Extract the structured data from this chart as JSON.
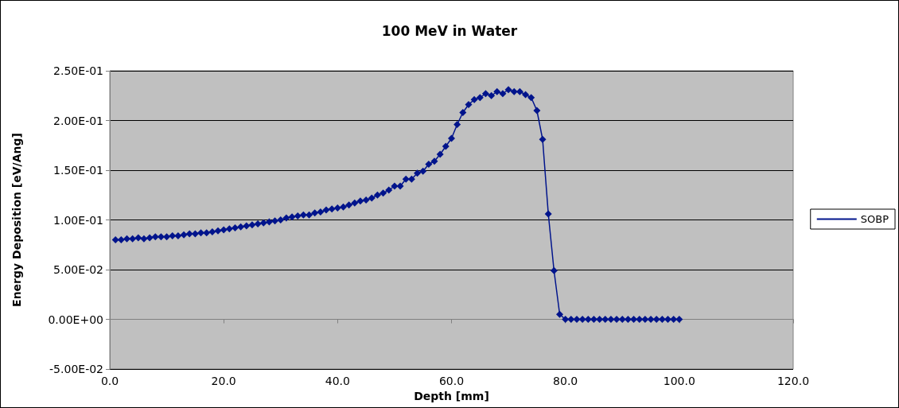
{
  "chart_data": {
    "type": "line",
    "title": "100 MeV in Water",
    "xlabel": "Depth [mm]",
    "ylabel": "Energy Deposition [eV/Ang]",
    "x": [
      1,
      2,
      3,
      4,
      5,
      6,
      7,
      8,
      9,
      10,
      11,
      12,
      13,
      14,
      15,
      16,
      17,
      18,
      19,
      20,
      21,
      22,
      23,
      24,
      25,
      26,
      27,
      28,
      29,
      30,
      31,
      32,
      33,
      34,
      35,
      36,
      37,
      38,
      39,
      40,
      41,
      42,
      43,
      44,
      45,
      46,
      47,
      48,
      49,
      50,
      51,
      52,
      53,
      54,
      55,
      56,
      57,
      58,
      59,
      60,
      61,
      62,
      63,
      64,
      65,
      66,
      67,
      68,
      69,
      70,
      71,
      72,
      73,
      74,
      75,
      76,
      77,
      78,
      79,
      80,
      81,
      82,
      83,
      84,
      85,
      86,
      87,
      88,
      89,
      90,
      91,
      92,
      93,
      94,
      95,
      96,
      97,
      98,
      99,
      100
    ],
    "series": [
      {
        "name": "SOBP",
        "color": "#00148c",
        "values": [
          0.08,
          0.08,
          0.081,
          0.081,
          0.082,
          0.081,
          0.082,
          0.083,
          0.083,
          0.083,
          0.084,
          0.084,
          0.085,
          0.086,
          0.086,
          0.087,
          0.087,
          0.088,
          0.089,
          0.09,
          0.091,
          0.092,
          0.093,
          0.094,
          0.095,
          0.096,
          0.097,
          0.098,
          0.099,
          0.1,
          0.102,
          0.103,
          0.104,
          0.105,
          0.105,
          0.107,
          0.108,
          0.11,
          0.111,
          0.112,
          0.113,
          0.115,
          0.117,
          0.119,
          0.12,
          0.122,
          0.125,
          0.127,
          0.13,
          0.134,
          0.134,
          0.141,
          0.141,
          0.147,
          0.149,
          0.156,
          0.159,
          0.166,
          0.174,
          0.182,
          0.196,
          0.208,
          0.216,
          0.221,
          0.223,
          0.227,
          0.225,
          0.229,
          0.227,
          0.231,
          0.229,
          0.229,
          0.226,
          0.223,
          0.21,
          0.181,
          0.106,
          0.049,
          0.005,
          0,
          0,
          0,
          0,
          0,
          0,
          0,
          0,
          0,
          0,
          0,
          0,
          0,
          0,
          0,
          0,
          0,
          0,
          0,
          0,
          0
        ]
      }
    ],
    "xlim": [
      0,
      120
    ],
    "xticks": [
      {
        "value": 0,
        "label": "0.0"
      },
      {
        "value": 20,
        "label": "20.0"
      },
      {
        "value": 40,
        "label": "40.0"
      },
      {
        "value": 60,
        "label": "60.0"
      },
      {
        "value": 80,
        "label": "80.0"
      },
      {
        "value": 100,
        "label": "100.0"
      },
      {
        "value": 120,
        "label": "120.0"
      }
    ],
    "ylim": [
      -0.05,
      0.25
    ],
    "yticks": [
      {
        "value": -0.05,
        "label": "-5.00E-02"
      },
      {
        "value": 0,
        "label": "0.00E+00"
      },
      {
        "value": 0.05,
        "label": "5.00E-02"
      },
      {
        "value": 0.1,
        "label": "1.00E-01"
      },
      {
        "value": 0.15,
        "label": "1.50E-01"
      },
      {
        "value": 0.2,
        "label": "2.00E-01"
      },
      {
        "value": 0.25,
        "label": "2.50E-01"
      }
    ],
    "grid": "y",
    "legend": "right",
    "marker": "diamond",
    "line_style": "solid"
  }
}
